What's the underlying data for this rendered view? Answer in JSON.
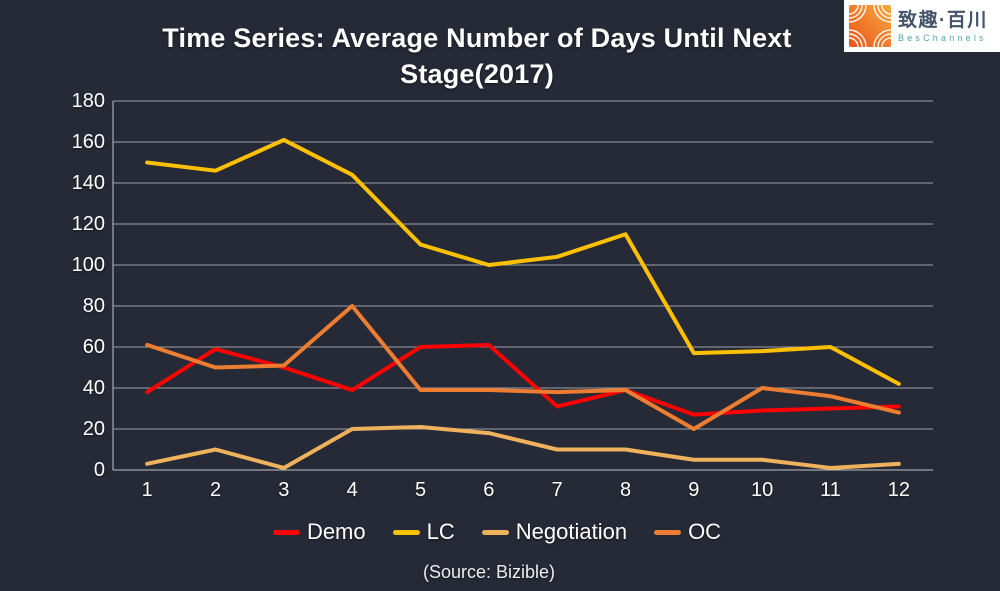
{
  "header": {
    "title_line1": "Time Series: Average Number of Days Until Next",
    "title_line2": "Stage(2017)"
  },
  "logo": {
    "name_cn": "致趣·百川",
    "name_en": "BesChannels",
    "icon": "beschannels-arcs-icon",
    "colors": {
      "card_bg": "#FFFFFF",
      "icon_orange_light": "#F9A83E",
      "icon_orange_deep": "#E8541D",
      "cn_text": "#44546A",
      "en_text": "#4FA6A8"
    }
  },
  "chart_data": {
    "type": "line",
    "title": "Time Series: Average Number of Days Until Next Stage(2017)",
    "xlabel": "",
    "ylabel": "",
    "categories": [
      "1",
      "2",
      "3",
      "4",
      "5",
      "6",
      "7",
      "8",
      "9",
      "10",
      "11",
      "12"
    ],
    "series": [
      {
        "name": "Demo",
        "color": "#FF0000",
        "values": [
          38,
          59,
          50,
          39,
          60,
          61,
          31,
          39,
          27,
          29,
          30,
          31
        ]
      },
      {
        "name": "LC",
        "color": "#FFC000",
        "values": [
          150,
          146,
          161,
          144,
          110,
          100,
          104,
          115,
          57,
          58,
          60,
          42
        ]
      },
      {
        "name": "Negotiation",
        "color": "#EEB25C",
        "values": [
          3,
          10,
          1,
          20,
          21,
          18,
          10,
          10,
          5,
          5,
          1,
          3
        ]
      },
      {
        "name": "OC",
        "color": "#ED7D31",
        "values": [
          61,
          50,
          51,
          80,
          39,
          39,
          38,
          39,
          20,
          40,
          36,
          28
        ]
      }
    ],
    "ylim": [
      0,
      180
    ],
    "ytick_step": 20,
    "grid": true,
    "legend_position": "bottom",
    "background_color": "#262A36",
    "gridline_color": "#9AA0A8",
    "axis_color": "#BDC1C7",
    "text_color": "#FFFFFF"
  },
  "footer": {
    "source": "(Source: Bizible)"
  }
}
